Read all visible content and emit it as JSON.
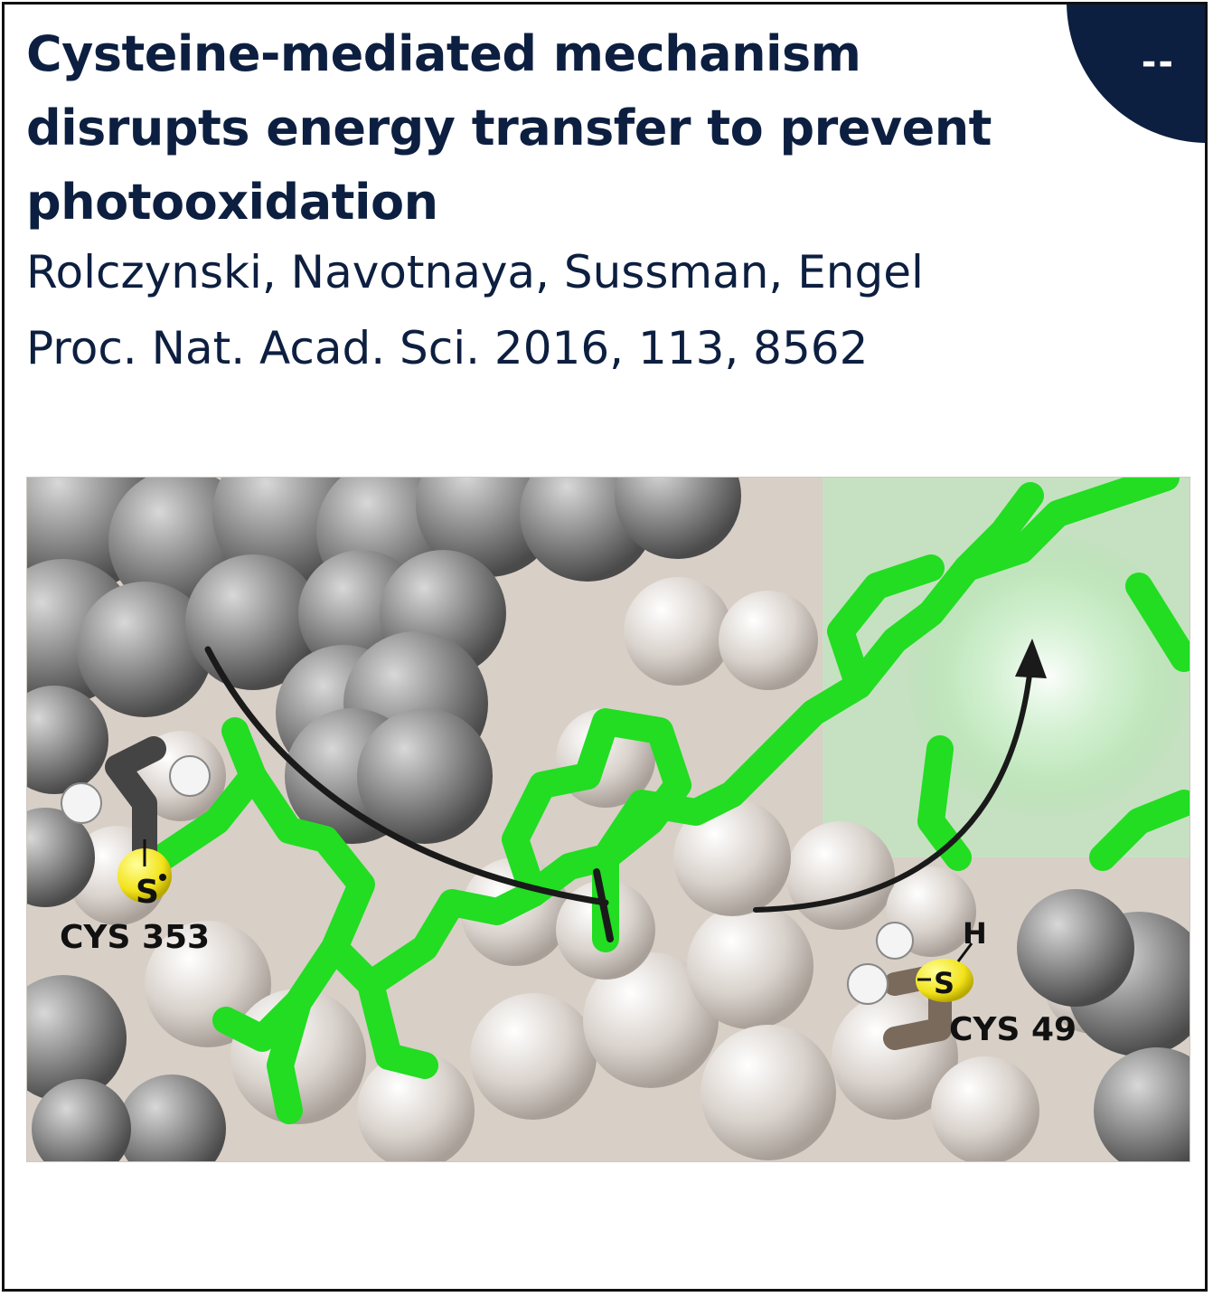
{
  "badge": {
    "text": "--"
  },
  "article": {
    "title": "Cysteine-mediated mechanism disrupts energy transfer to prevent photooxidation",
    "authors": "Rolczynski, Navotnaya, Sussman, Engel",
    "citation": "Proc. Nat. Acad. Sci. 2016, 113, 8562"
  },
  "figure": {
    "labels": {
      "cys353": "CYS 353",
      "cys49": "CYS 49",
      "s_left": "S",
      "s_right": "S",
      "h_right": "H"
    }
  },
  "colors": {
    "navy": "#0d1f40",
    "pigment_green": "#22dd22",
    "sulfur_yellow": "#f2e21a",
    "protein_gray": "#9a9a9a",
    "protein_beige": "#d9cfc6"
  }
}
